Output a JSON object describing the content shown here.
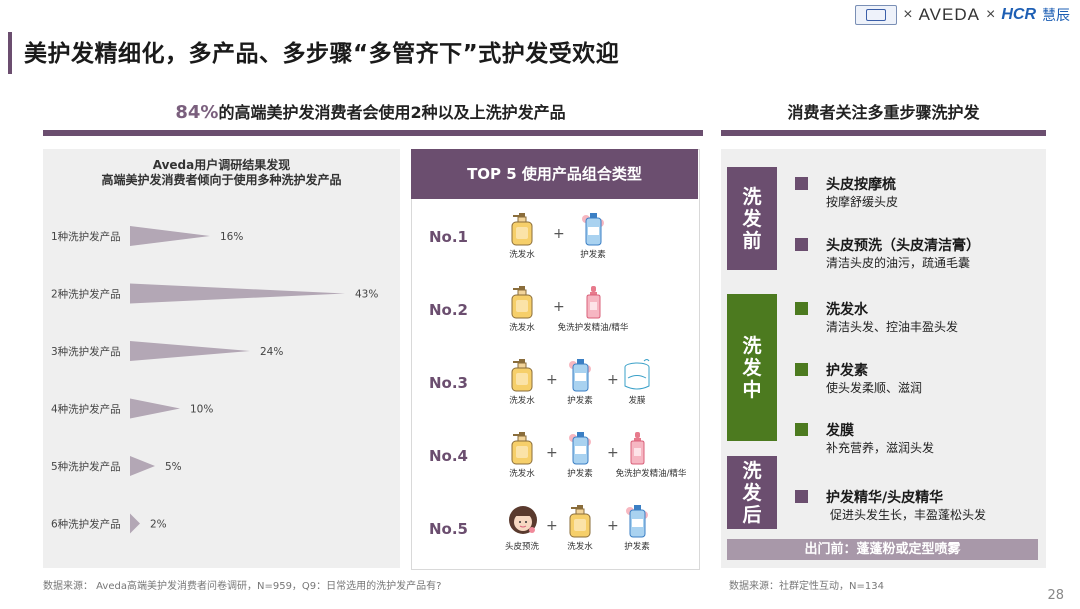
{
  "header": {
    "title": "美护发精细化，多产品、多步骤“多管齐下”式护发受欢迎",
    "logos": {
      "x1": "×",
      "aveda": "AVEDA",
      "x2": "×",
      "hcr": "HCR",
      "hcr_cn": "慧辰"
    }
  },
  "left_section": {
    "heading_pct": "84%",
    "heading_rest": "的高端美护发消费者会使用2种以及上洗护发产品",
    "chart_title_line1": "Aveda用户调研结果发现",
    "chart_title_line2": "高端美护发消费者倾向于使用多种洗护发产品",
    "source": "数据来源： Aveda高端美护发消费者问卷调研，N=959，Q9：日常选用的洗护发产品有?"
  },
  "chart_data": {
    "type": "bar",
    "orientation": "horizontal",
    "title": "Aveda用户调研结果发现 高端美护发消费者倾向于使用多种洗护发产品",
    "categories": [
      "1种洗护发产品",
      "2种洗护发产品",
      "3种洗护发产品",
      "4种洗护发产品",
      "5种洗护发产品",
      "6种洗护发产品"
    ],
    "values": [
      16,
      43,
      24,
      10,
      5,
      2
    ],
    "value_labels": [
      "16%",
      "43%",
      "24%",
      "10%",
      "5%",
      "2%"
    ],
    "unit": "%",
    "color": "#b3a7b5",
    "xlim": [
      0,
      45
    ]
  },
  "top5": {
    "header": "TOP 5 使用产品组合类型",
    "rows": [
      {
        "rank": "No.1",
        "items": [
          "洗发水",
          "护发素"
        ]
      },
      {
        "rank": "No.2",
        "items": [
          "洗发水",
          "免洗护发精油/精华"
        ]
      },
      {
        "rank": "No.3",
        "items": [
          "洗发水",
          "护发素",
          "发膜"
        ]
      },
      {
        "rank": "No.4",
        "items": [
          "洗发水",
          "护发素",
          "免洗护发精油/精华"
        ]
      },
      {
        "rank": "No.5",
        "items": [
          "头皮预洗",
          "洗发水",
          "护发素"
        ]
      }
    ],
    "plus": "+"
  },
  "right_section": {
    "heading": "消费者关注多重步骤洗护发",
    "stages": [
      {
        "label": [
          "洗",
          "发",
          "前"
        ],
        "color": "#6b4e6f",
        "items": [
          {
            "title": "头皮按摩梳",
            "desc": "按摩舒缓头皮"
          },
          {
            "title": "头皮预洗（头皮清洁膏）",
            "desc": "清洁头皮的油污，疏通毛囊"
          }
        ]
      },
      {
        "label": [
          "洗",
          "发",
          "中"
        ],
        "color": "#4c7a1f",
        "items": [
          {
            "title": "洗发水",
            "desc": "清洁头发、控油丰盈头发"
          },
          {
            "title": "护发素",
            "desc": "使头发柔顺、滋润"
          },
          {
            "title": "发膜",
            "desc": "补充营养，滋润头发"
          }
        ]
      },
      {
        "label": [
          "洗",
          "发",
          "后"
        ],
        "color": "#6b4e6f",
        "items": [
          {
            "title": "护发精华/头皮精华",
            "desc": "促进头发生长，丰盈蓬松头发"
          }
        ]
      }
    ],
    "after_bar": "出门前：蓬蓬粉或定型喷雾",
    "source": "数据来源：社群定性互动，N=134"
  },
  "page_number": "28"
}
